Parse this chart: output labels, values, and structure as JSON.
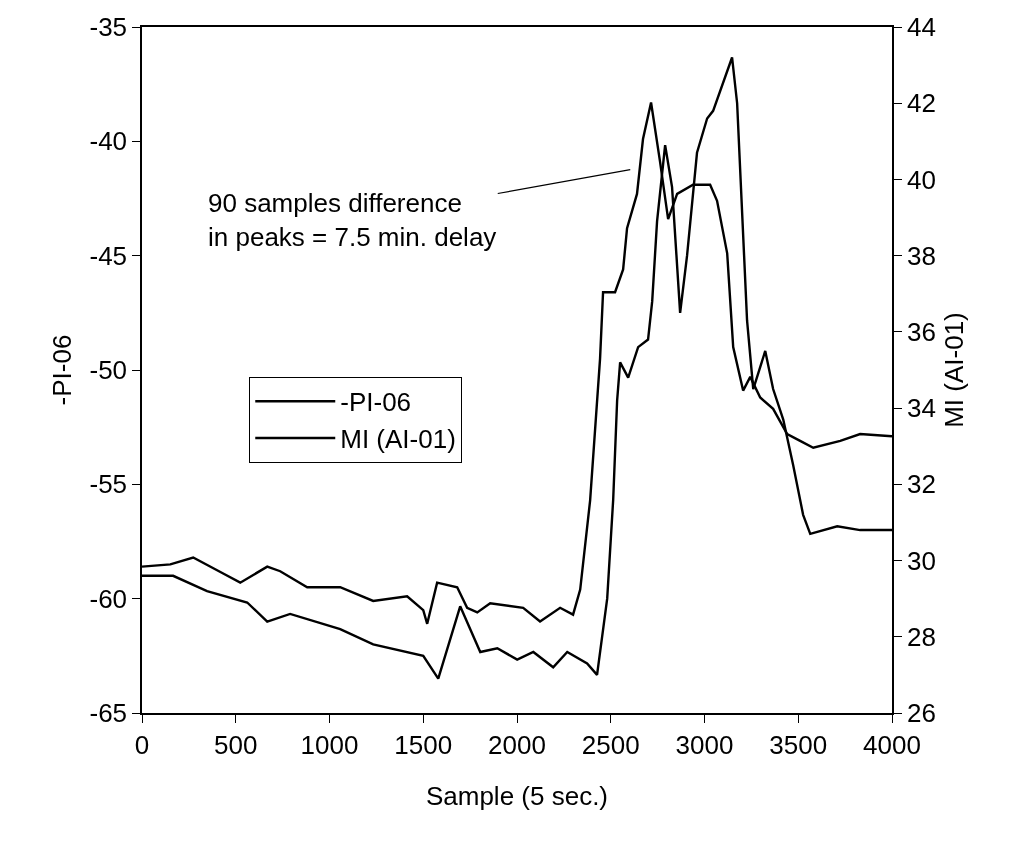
{
  "chart_data": {
    "type": "line",
    "xlabel": "Sample (5 sec.)",
    "ylabel": "-PI-06",
    "y2label": "MI (AI-01)",
    "xlim": [
      0,
      4000
    ],
    "xticks": [
      0,
      500,
      1000,
      1500,
      2000,
      2500,
      3000,
      3500,
      4000
    ],
    "ylim": [
      -65,
      -35
    ],
    "yticks": [
      -65,
      -60,
      -55,
      -50,
      -45,
      -40,
      -35
    ],
    "y2lim": [
      26,
      44
    ],
    "y2ticks": [
      26,
      28,
      30,
      32,
      34,
      36,
      38,
      40,
      42,
      44
    ],
    "grid": false,
    "legend": "left",
    "marker": "none",
    "line_style": "solid",
    "annotations": [
      "90 samples difference\nin peaks = 7.5 min. delay"
    ],
    "series": [
      {
        "name": "-PI-06",
        "color": "#000000",
        "x": [
          0,
          151,
          273,
          433,
          524,
          668,
          737,
          881,
          1057,
          1233,
          1414,
          1500,
          1521,
          1574,
          1681,
          1734,
          1788,
          1857,
          2033,
          2123,
          2230,
          2299,
          2337,
          2390,
          2443,
          2459,
          2523,
          2566,
          2587,
          2640,
          2672,
          2715,
          2763,
          2806,
          2854,
          2939,
          3030,
          3067,
          3121,
          3153,
          3206,
          3244,
          3297,
          3366,
          3441,
          3510,
          3580,
          3724,
          3830,
          4000
        ],
        "values": [
          -58.6,
          -58.5,
          -58.2,
          -58.9,
          -59.3,
          -58.6,
          -58.8,
          -59.5,
          -59.5,
          -60.1,
          -59.9,
          -60.5,
          -61.1,
          -59.3,
          -59.5,
          -60.4,
          -60.6,
          -60.2,
          -60.4,
          -61.0,
          -60.4,
          -60.7,
          -59.6,
          -55.7,
          -49.5,
          -46.6,
          -46.6,
          -45.6,
          -43.8,
          -42.3,
          -39.9,
          -38.3,
          -40.9,
          -43.4,
          -42.3,
          -41.9,
          -41.9,
          -42.6,
          -44.9,
          -49.0,
          -50.9,
          -50.3,
          -51.2,
          -51.7,
          -52.8,
          -53.1,
          -53.4,
          -53.1,
          -52.8,
          -52.9
        ]
      },
      {
        "name": "MI (AI-01)",
        "color": "#000000",
        "axis": "y2",
        "x": [
          0,
          166,
          347,
          561,
          668,
          790,
          1057,
          1233,
          1500,
          1580,
          1697,
          1804,
          1895,
          2001,
          2087,
          2193,
          2268,
          2374,
          2427,
          2481,
          2513,
          2534,
          2550,
          2593,
          2646,
          2699,
          2721,
          2747,
          2790,
          2827,
          2870,
          2907,
          2960,
          3014,
          3046,
          3147,
          3174,
          3227,
          3260,
          3324,
          3366,
          3420,
          3473,
          3526,
          3564,
          3708,
          3830,
          4000
        ],
        "values": [
          29.6,
          29.6,
          29.2,
          28.9,
          28.4,
          28.6,
          28.2,
          27.8,
          27.5,
          26.9,
          28.8,
          27.6,
          27.7,
          27.4,
          27.6,
          27.2,
          27.6,
          27.3,
          27.0,
          29.0,
          31.6,
          34.2,
          35.2,
          34.8,
          35.6,
          35.8,
          36.8,
          38.9,
          40.9,
          39.8,
          36.5,
          38.0,
          40.7,
          41.6,
          41.8,
          43.2,
          42.0,
          36.3,
          34.5,
          35.5,
          34.5,
          33.7,
          32.5,
          31.2,
          30.7,
          30.9,
          30.8,
          30.8
        ]
      }
    ]
  }
}
